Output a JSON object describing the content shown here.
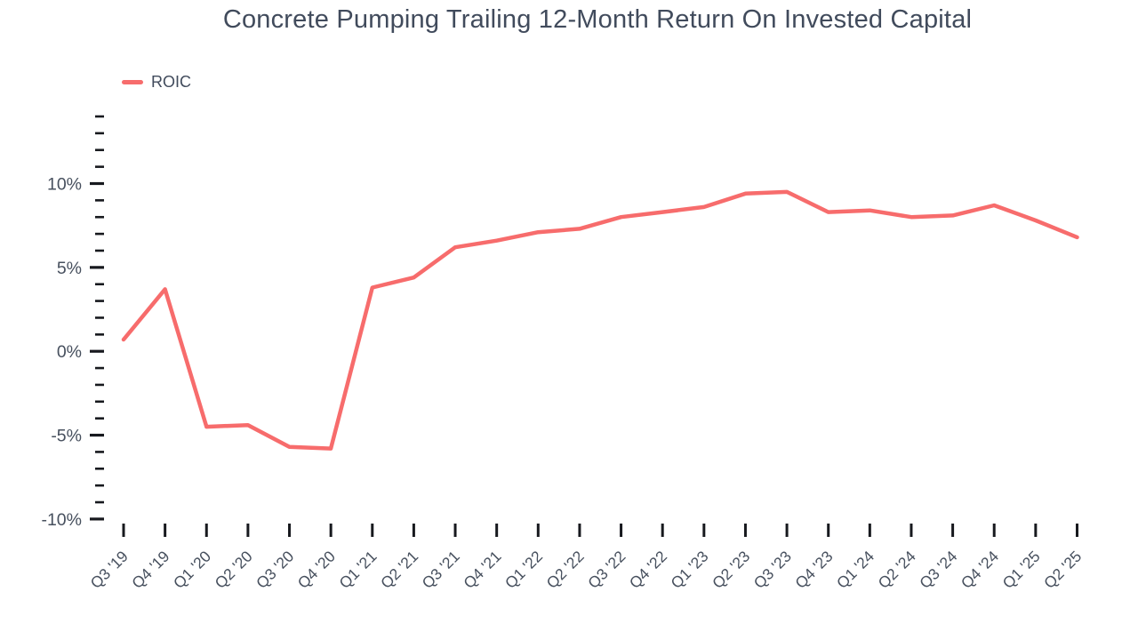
{
  "chart_data": {
    "type": "line",
    "title": "Concrete Pumping Trailing 12-Month Return On Invested Capital",
    "legend_position": "top-left",
    "grid": false,
    "categories": [
      "Q3 '19",
      "Q4 '19",
      "Q1 '20",
      "Q2 '20",
      "Q3 '20",
      "Q4 '20",
      "Q1 '21",
      "Q2 '21",
      "Q3 '21",
      "Q4 '21",
      "Q1 '22",
      "Q2 '22",
      "Q3 '22",
      "Q4 '22",
      "Q1 '23",
      "Q2 '23",
      "Q3 '23",
      "Q4 '23",
      "Q1 '24",
      "Q2 '24",
      "Q3 '24",
      "Q4 '24",
      "Q1 '25",
      "Q2 '25"
    ],
    "series": [
      {
        "name": "ROIC",
        "color": "#f76c6c",
        "unit": "%",
        "values": [
          0.7,
          3.7,
          -4.5,
          -4.4,
          -5.7,
          -5.8,
          3.8,
          4.4,
          6.2,
          6.6,
          7.1,
          7.3,
          8.0,
          8.3,
          8.6,
          9.4,
          9.5,
          8.3,
          8.4,
          8.0,
          8.1,
          8.7,
          7.8,
          6.8
        ]
      }
    ],
    "x_axis": {
      "label": "",
      "tick_rotation": -45
    },
    "y_axis": {
      "label": "",
      "unit": "%",
      "min": -10,
      "max": 14,
      "minor_step": 1,
      "major_step": 5,
      "labeled_ticks": [
        -10,
        -5,
        0,
        5,
        10
      ]
    },
    "colors": {
      "line": "#f76c6c",
      "text": "#47505e",
      "title_text": "#414b5c",
      "tick": "#17191e",
      "background": "#ffffff"
    }
  }
}
